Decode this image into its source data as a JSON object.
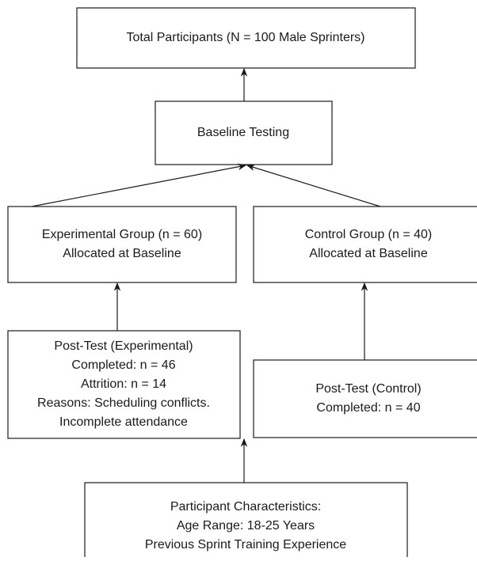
{
  "nodes": [
    {
      "lines": [
        "Total Participants (N = 100 Male Sprinters)"
      ]
    },
    {
      "lines": [
        "Baseline Testing"
      ]
    },
    {
      "lines": [
        "Experimental Group (n = 60)",
        "Allocated at Baseline"
      ]
    },
    {
      "lines": [
        "Control Group (n = 40)",
        "Allocated at Baseline"
      ]
    },
    {
      "lines": [
        "Post-Test (Experimental)",
        "Completed: n = 46",
        "Attrition: n = 14",
        "Reasons: Scheduling conflicts.",
        "Incomplete attendance"
      ]
    },
    {
      "lines": [
        "Post-Test (Control)",
        "Completed: n = 40"
      ]
    },
    {
      "lines": [
        "Participant Characteristics:",
        "Age Range: 18-25 Years",
        "Previous Sprint Training Experience"
      ]
    }
  ]
}
